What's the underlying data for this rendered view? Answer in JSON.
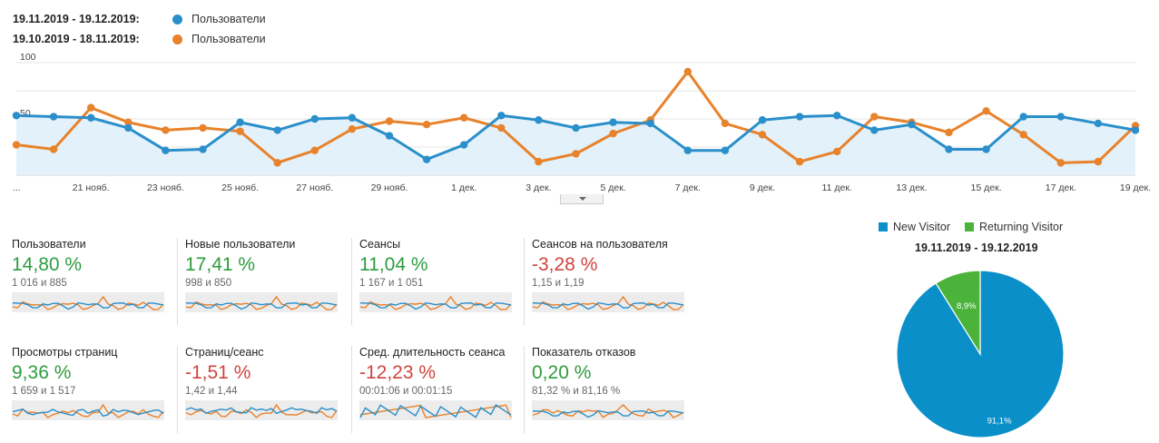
{
  "legend": {
    "current_range": "19.11.2019 - 19.12.2019:",
    "current_name": "Пользователи",
    "previous_range": "19.10.2019 - 18.11.2019:",
    "previous_name": "Пользователи"
  },
  "colors": {
    "current": "#2a8fca",
    "previous": "#e8822b",
    "pos": "#2e9c3f",
    "neg": "#d0443e",
    "new_visitor": "#0a8fc9",
    "returning_visitor": "#4cb33a"
  },
  "chart_data": [
    {
      "type": "line",
      "ylim": [
        0,
        100
      ],
      "y_ticks": [
        "50",
        "100"
      ],
      "x_tick_labels": [
        "...",
        "21 нояб.",
        "23 нояб.",
        "25 нояб.",
        "27 нояб.",
        "29 нояб.",
        "1 дек.",
        "3 дек.",
        "5 дек.",
        "7 дек.",
        "9 дек.",
        "11 дек.",
        "13 дек.",
        "15 дек.",
        "17 дек.",
        "19 дек."
      ],
      "x": [
        "19 нояб.",
        "20 нояб.",
        "21 нояб.",
        "22 нояб.",
        "23 нояб.",
        "24 нояб.",
        "25 нояб.",
        "26 нояб.",
        "27 нояб.",
        "28 нояб.",
        "29 нояб.",
        "30 нояб.",
        "1 дек.",
        "2 дек.",
        "3 дек.",
        "4 дек.",
        "5 дек.",
        "6 дек.",
        "7 дек.",
        "8 дек.",
        "9 дек.",
        "10 дек.",
        "11 дек.",
        "12 дек.",
        "13 дек.",
        "14 дек.",
        "15 дек.",
        "16 дек.",
        "17 дек.",
        "18 дек.",
        "19 дек."
      ],
      "series": [
        {
          "name": "Пользователи",
          "period": "current",
          "values": [
            53,
            52,
            51,
            42,
            22,
            23,
            47,
            40,
            50,
            51,
            35,
            14,
            27,
            53,
            49,
            42,
            47,
            46,
            22,
            22,
            49,
            52,
            53,
            40,
            45,
            23,
            23,
            52,
            52,
            46,
            40
          ]
        },
        {
          "name": "Пользователи",
          "period": "previous",
          "values": [
            27,
            23,
            60,
            47,
            40,
            42,
            39,
            11,
            22,
            41,
            48,
            45,
            51,
            42,
            12,
            19,
            37,
            49,
            92,
            46,
            36,
            12,
            21,
            52,
            47,
            38,
            57,
            36,
            11,
            12,
            44
          ]
        }
      ]
    },
    {
      "type": "pie",
      "title": "19.11.2019 - 19.12.2019",
      "labels": [
        "New Visitor",
        "Returning Visitor"
      ],
      "values": [
        91.1,
        8.9
      ],
      "value_labels": [
        "91,1%",
        "8,9%"
      ]
    }
  ],
  "metrics": [
    {
      "label": "Пользователи",
      "value": "14,80 %",
      "sub": "1 016 и 885",
      "tone": "pos"
    },
    {
      "label": "Новые пользователи",
      "value": "17,41 %",
      "sub": "998 и 850",
      "tone": "pos"
    },
    {
      "label": "Сеансы",
      "value": "11,04 %",
      "sub": "1 167 и 1 051",
      "tone": "pos"
    },
    {
      "label": "Сеансов на пользователя",
      "value": "-3,28 %",
      "sub": "1,15 и 1,19",
      "tone": "neg"
    },
    {
      "label": "Просмотры страниц",
      "value": "9,36 %",
      "sub": "1 659 и 1 517",
      "tone": "pos"
    },
    {
      "label": "Страниц/сеанс",
      "value": "-1,51 %",
      "sub": "1,42 и 1,44",
      "tone": "neg"
    },
    {
      "label": "Сред. длительность сеанса",
      "value": "-12,23 %",
      "sub": "00:01:06 и 00:01:15",
      "tone": "neg"
    },
    {
      "label": "Показатель отказов",
      "value": "0,20 %",
      "sub": "81,32 % и 81,16 %",
      "tone": "pos"
    }
  ]
}
